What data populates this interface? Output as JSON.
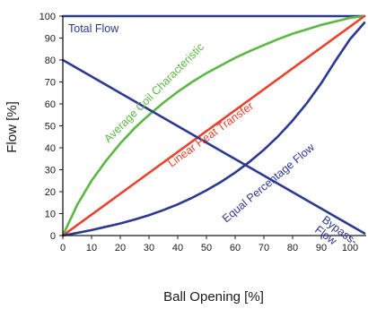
{
  "chart_data": {
    "type": "line",
    "xlabel": "Ball Opening [%]",
    "ylabel": "Flow [%]",
    "xlim": [
      0,
      105
    ],
    "ylim": [
      0,
      100
    ],
    "x_ticks": [
      "0",
      "10",
      "20",
      "30",
      "40",
      "50",
      "60",
      "70",
      "80",
      "90",
      "100"
    ],
    "y_ticks": [
      "0",
      "10",
      "20",
      "30",
      "40",
      "50",
      "60",
      "70",
      "80",
      "90",
      "100"
    ],
    "grid": false,
    "legend": "none",
    "series": [
      {
        "name": "Total Flow",
        "color": "#2b3990",
        "x": [
          0,
          105
        ],
        "y": [
          100,
          100
        ]
      },
      {
        "name": "Average Coil Characteristic",
        "color": "#5cb746",
        "x": [
          0,
          5,
          10,
          15,
          20,
          25,
          30,
          35,
          40,
          45,
          50,
          55,
          60,
          65,
          70,
          75,
          80,
          85,
          90,
          95,
          100,
          105
        ],
        "y": [
          0,
          14,
          25,
          34,
          42,
          49,
          55,
          60.5,
          65.5,
          70,
          74,
          77.5,
          81,
          84,
          86.8,
          89.5,
          92,
          94,
          96,
          97.6,
          99.2,
          100
        ]
      },
      {
        "name": "Linear Heat Transfer",
        "color": "#e8432e",
        "x": [
          0,
          105
        ],
        "y": [
          0,
          100
        ]
      },
      {
        "name": "Equal Percentage Flow",
        "color": "#2b3990",
        "x": [
          0,
          5,
          10,
          15,
          20,
          25,
          30,
          35,
          40,
          45,
          50,
          55,
          60,
          65,
          70,
          75,
          80,
          85,
          90,
          95,
          100,
          105
        ],
        "y": [
          0,
          1.2,
          2.5,
          4,
          5.5,
          7.3,
          9.3,
          11.6,
          14.2,
          17.2,
          20.6,
          24.4,
          28.7,
          33.6,
          39.1,
          45.3,
          52.4,
          60.4,
          69.5,
          79.8,
          89.5,
          97
        ]
      },
      {
        "name": "Bypass-Flow",
        "color": "#2b3990",
        "x": [
          0,
          105
        ],
        "y": [
          80,
          1
        ]
      }
    ],
    "annotations": [
      {
        "id": "total",
        "text": "Total Flow"
      },
      {
        "id": "coil",
        "text": "Average Coil Characteristic"
      },
      {
        "id": "linear",
        "text": "Linear Heat Transfer"
      },
      {
        "id": "equal",
        "text": "Equal Percentage Flow"
      },
      {
        "id": "bypass1",
        "text": "Bypass-"
      },
      {
        "id": "bypass2",
        "text": "Flow"
      }
    ]
  }
}
